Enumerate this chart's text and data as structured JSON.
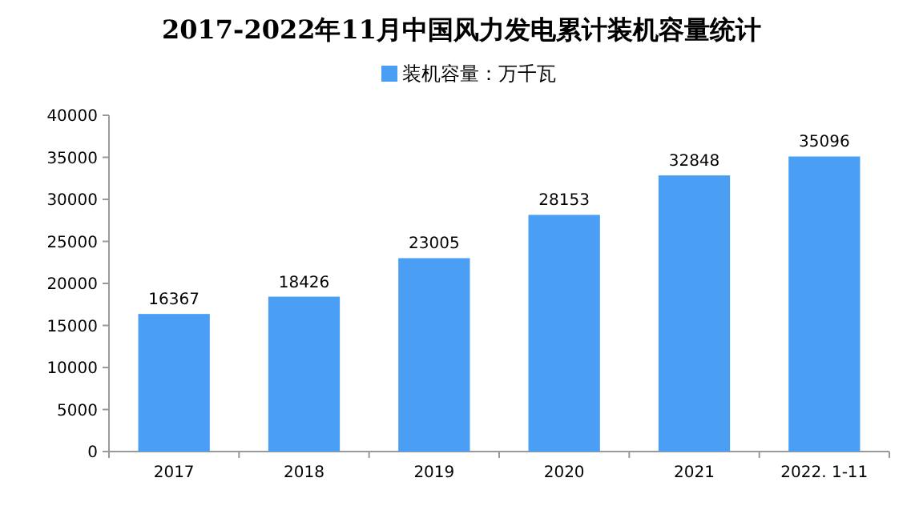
{
  "chart_data": {
    "type": "bar",
    "title": "2017-2022年11月中国风力发电累计装机容量统计",
    "categories": [
      "2017",
      "2018",
      "2019",
      "2020",
      "2021",
      "2022. 1-11"
    ],
    "series": [
      {
        "name": "装机容量：万千瓦",
        "color": "#4a9ff5",
        "values": [
          16367,
          18426,
          23005,
          28153,
          32848,
          35096
        ]
      }
    ],
    "ylim": [
      0,
      40000
    ],
    "yticks": [
      0,
      5000,
      10000,
      15000,
      20000,
      25000,
      30000,
      35000,
      40000
    ],
    "data_labels": true,
    "legend": "top",
    "grid": false
  }
}
